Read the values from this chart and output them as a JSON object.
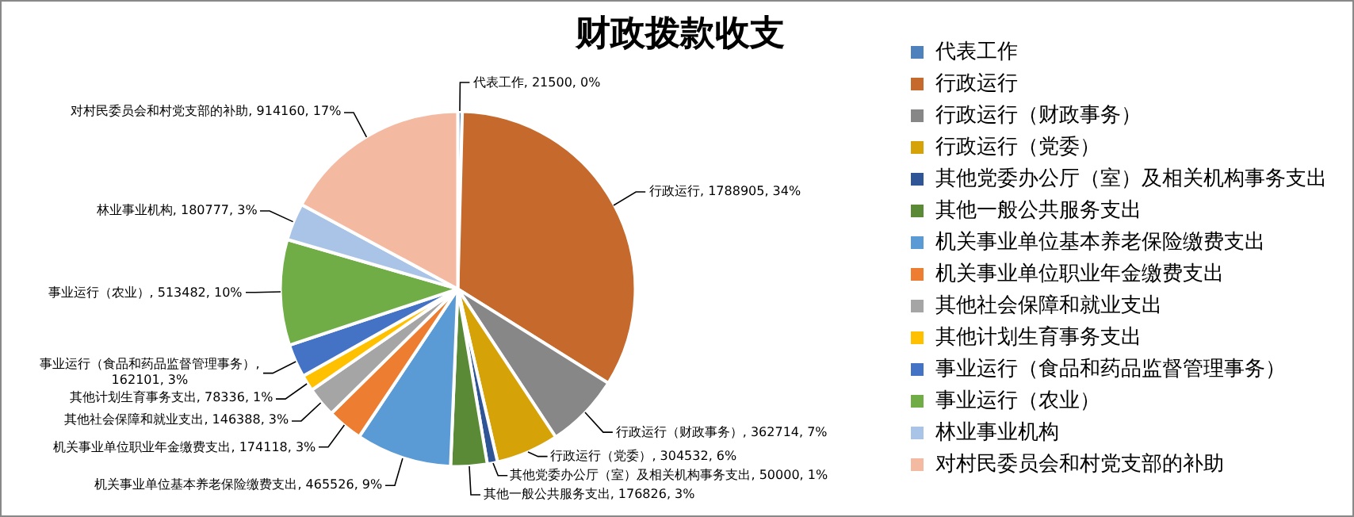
{
  "chart_data": {
    "type": "pie",
    "title": "财政拨款收支",
    "categories": [
      "代表工作",
      "行政运行",
      "行政运行（财政事务）",
      "行政运行（党委）",
      "其他党委办公厅（室）及相关机构事务支出",
      "其他一般公共服务支出",
      "机关事业单位基本养老保险缴费支出",
      "机关事业单位职业年金缴费支出",
      "其他社会保障和就业支出",
      "其他计划生育事务支出",
      "事业运行（食品和药品监督管理事务）",
      "事业运行（农业）",
      "林业事业机构",
      "对村民委员会和村党支部的补助"
    ],
    "values": [
      21500,
      1788905,
      362714,
      304532,
      50000,
      176826,
      465526,
      174118,
      146388,
      78336,
      162101,
      513482,
      180777,
      914160
    ],
    "value_labels": [
      "代表工作, 21500, 0%",
      "行政运行, 1788905, 34%",
      "行政运行（财政事务）, 362714, 7%",
      "行政运行（党委）, 304532, 6%",
      "其他党委办公厅（室）及相关机构事务支出, 50000, 1%",
      "其他一般公共服务支出, 176826, 3%",
      "机关事业单位基本养老保险缴费支出, 465526, 9%",
      "机关事业单位职业年金缴费支出, 174118, 3%",
      "其他社会保障和就业支出, 146388, 3%",
      "其他计划生育事务支出, 78336, 1%",
      "事业运行（食品和药品监督管理事务）, 162101, 3%",
      "事业运行（农业）, 513482, 10%",
      "林业事业机构, 180777, 3%",
      "对村民委员会和村党支部的补助, 914160, 17%"
    ],
    "colors": [
      "#4f81bd",
      "#c5692d",
      "#878787",
      "#d5a207",
      "#2f5597",
      "#5a8a35",
      "#5b9bd5",
      "#ed7d31",
      "#a5a5a5",
      "#ffc000",
      "#4472c4",
      "#70ad47",
      "#a9c4e6",
      "#f4b9a1"
    ],
    "legend": "right"
  }
}
